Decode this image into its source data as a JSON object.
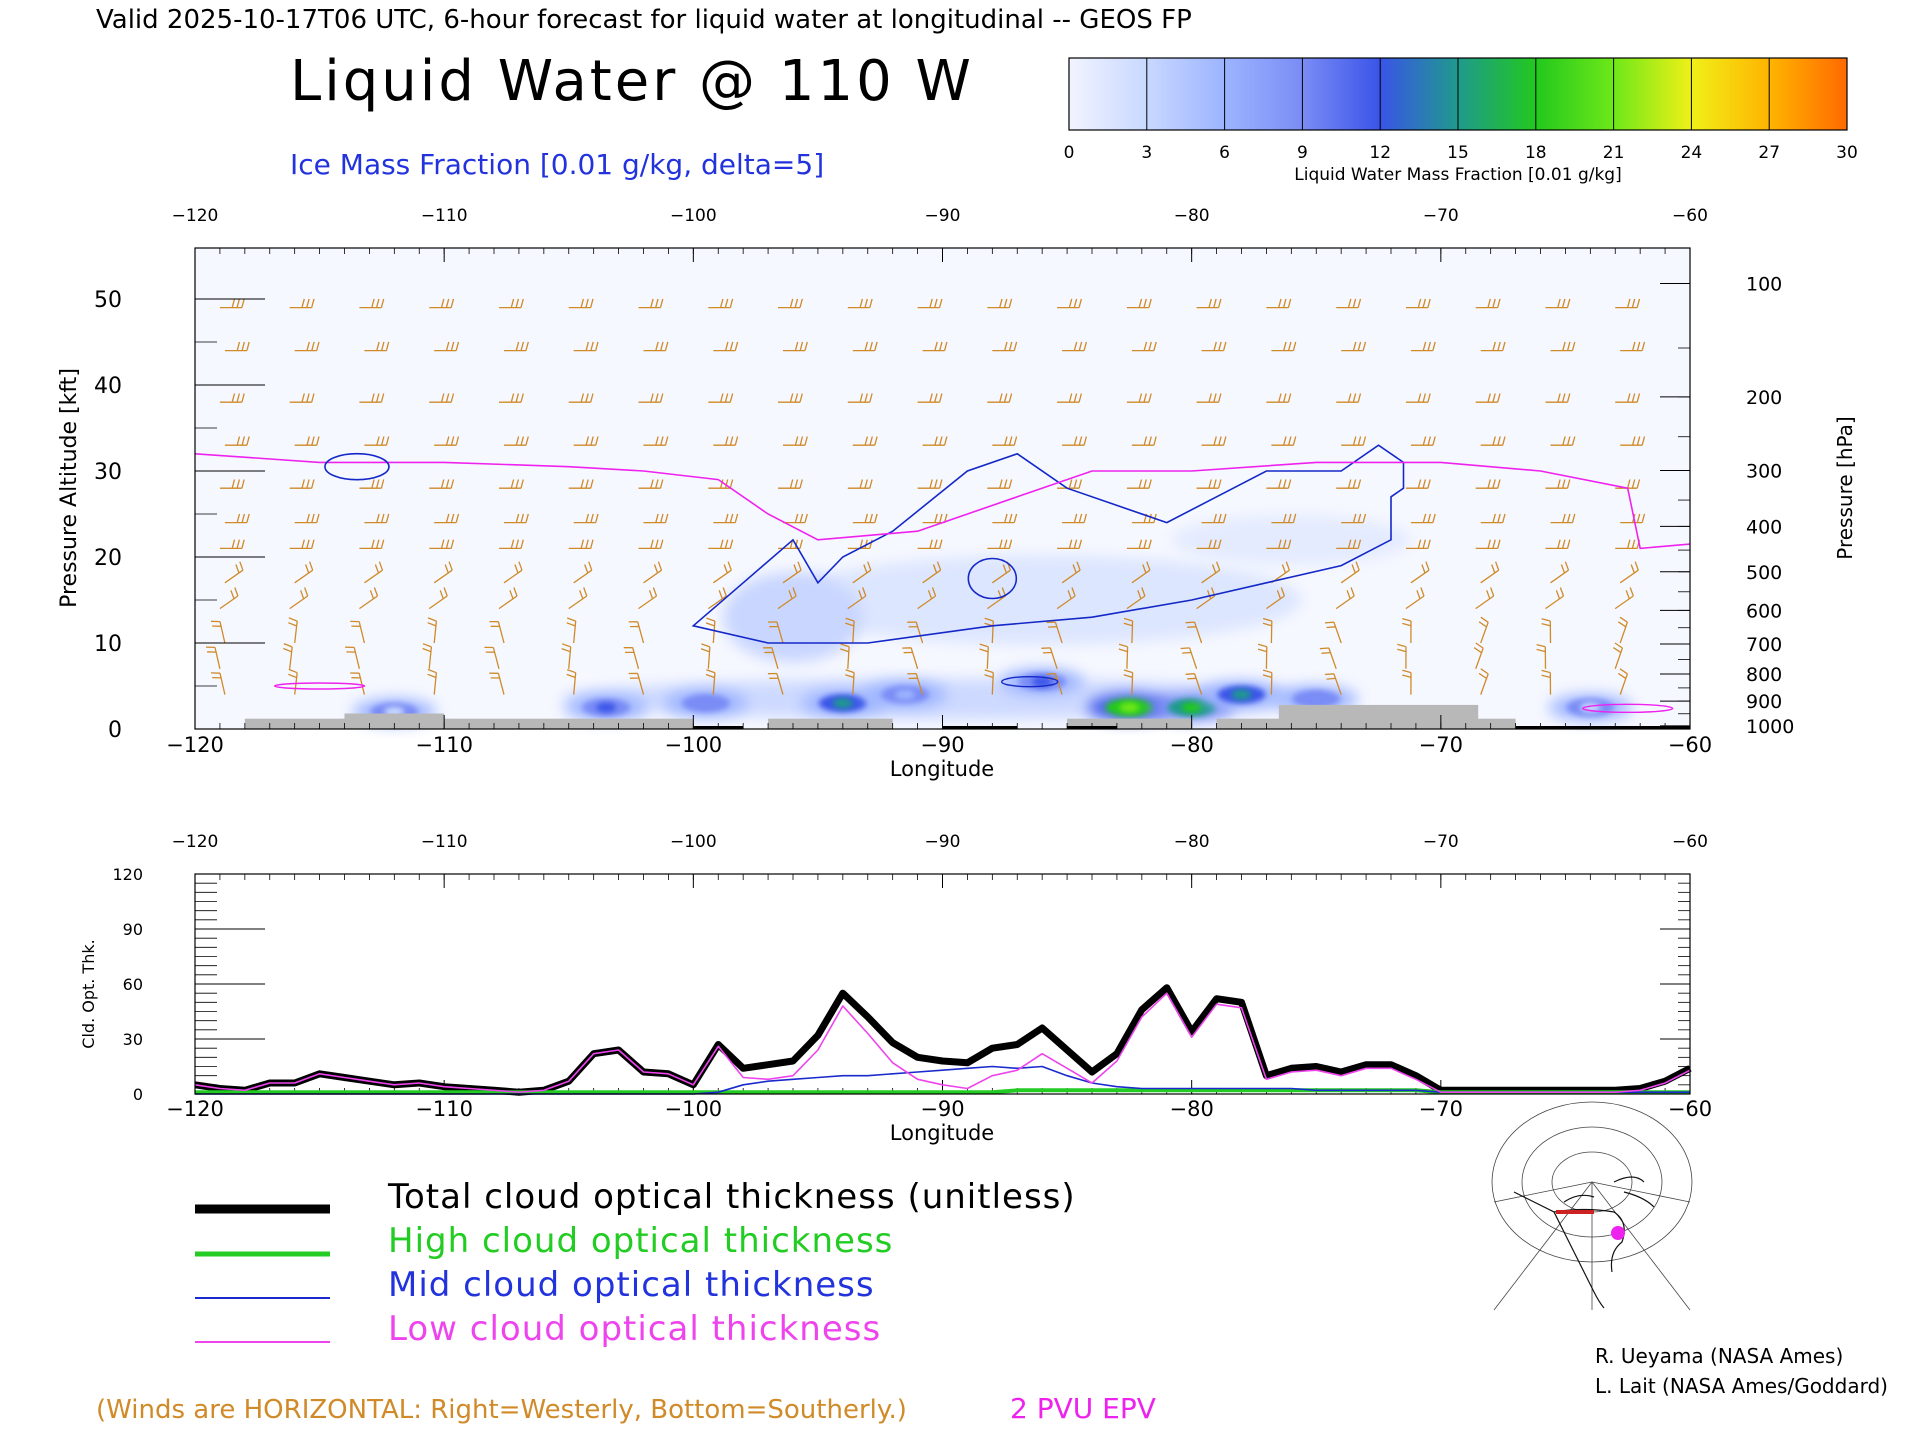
{
  "header": {
    "valid_line": "Valid 2025-10-17T06 UTC, 6-hour forecast for liquid water at longitudinal -- GEOS FP",
    "title": "Liquid Water @ 110 W",
    "subtitle": "Ice Mass Fraction [0.01 g/kg, delta=5]"
  },
  "colorbar": {
    "label": "Liquid Water Mass Fraction [0.01 g/kg]",
    "ticks": [
      "0",
      "3",
      "6",
      "9",
      "12",
      "15",
      "18",
      "21",
      "24",
      "27",
      "30"
    ],
    "colors": [
      "#f2f4ff",
      "#c8d8ff",
      "#9cb4ff",
      "#7a8cf5",
      "#3a54e8",
      "#1f9a8c",
      "#22c81e",
      "#6ee818",
      "#f0f018",
      "#ffb400",
      "#ff6a00"
    ]
  },
  "colors": {
    "ice_contour": "#1428c8",
    "epv_contour": "#ee22ee",
    "wind_barb": "#d08a28",
    "terrain": "#b8b8b8",
    "total_line": "#000000",
    "high_line": "#22cc22",
    "mid_line": "#1a2acc",
    "low_line": "#ee44ee"
  },
  "chart_data": [
    {
      "type": "heatmap",
      "title": "Liquid Water @ 110 W",
      "xlabel": "Longitude",
      "ylabel_left": "Pressure Altitude [kft]",
      "ylabel_right": "Pressure [hPa]",
      "xlim": [
        -120,
        -60
      ],
      "ylim": [
        0,
        55
      ],
      "x_ticks": [
        "-120",
        "-110",
        "-100",
        "-90",
        "-80",
        "-70",
        "-60"
      ],
      "top_x_ticks": [
        "-120",
        "-110",
        "-100",
        "-90",
        "-80",
        "-70",
        "-60"
      ],
      "y_ticks": [
        "0",
        "10",
        "20",
        "30",
        "40",
        "50"
      ],
      "pressure_ticks": [
        "100",
        "200",
        "300",
        "400",
        "500",
        "600",
        "700",
        "800",
        "900",
        "1000"
      ],
      "liquid_water_blobs": [
        {
          "lon": -103.5,
          "alt": 2.5,
          "value": 14
        },
        {
          "lon": -99.5,
          "alt": 3.0,
          "value": 10
        },
        {
          "lon": -94.0,
          "alt": 3.0,
          "value": 17
        },
        {
          "lon": -91.5,
          "alt": 4.0,
          "value": 8
        },
        {
          "lon": -86.0,
          "alt": 5.5,
          "value": 13
        },
        {
          "lon": -82.5,
          "alt": 2.5,
          "value": 22
        },
        {
          "lon": -80.0,
          "alt": 2.5,
          "value": 18
        },
        {
          "lon": -78.0,
          "alt": 4.0,
          "value": 15
        },
        {
          "lon": -75.0,
          "alt": 3.5,
          "value": 9
        },
        {
          "lon": -112.0,
          "alt": 2.0,
          "value": 5
        },
        {
          "lon": -64.0,
          "alt": 2.5,
          "value": 5
        }
      ],
      "ice_contour_5": [
        [
          -100,
          12
        ],
        [
          -97,
          10
        ],
        [
          -93,
          10
        ],
        [
          -88,
          12
        ],
        [
          -84,
          13
        ],
        [
          -80,
          15
        ],
        [
          -77,
          17
        ],
        [
          -74,
          19
        ],
        [
          -72,
          22
        ],
        [
          -72,
          27
        ],
        [
          -71.5,
          28
        ],
        [
          -71.5,
          31
        ],
        [
          -72.5,
          33
        ],
        [
          -74,
          30
        ],
        [
          -77,
          30
        ],
        [
          -79,
          27
        ],
        [
          -81,
          24
        ],
        [
          -83,
          26
        ],
        [
          -85,
          28
        ],
        [
          -87,
          32
        ],
        [
          -89,
          30
        ],
        [
          -92,
          23
        ],
        [
          -94,
          20
        ],
        [
          -95,
          17
        ],
        [
          -96,
          22
        ],
        [
          -98,
          17
        ],
        [
          -100,
          12
        ]
      ],
      "epv_2pvu": [
        [
          -120,
          32
        ],
        [
          -115,
          31
        ],
        [
          -110,
          31
        ],
        [
          -105,
          30.5
        ],
        [
          -102,
          30
        ],
        [
          -99,
          29
        ],
        [
          -97,
          25
        ],
        [
          -95,
          22
        ],
        [
          -91,
          23
        ],
        [
          -87,
          27
        ],
        [
          -84,
          30
        ],
        [
          -80,
          30
        ],
        [
          -75,
          31
        ],
        [
          -70,
          31
        ],
        [
          -66,
          30
        ],
        [
          -62.5,
          28
        ],
        [
          -62,
          21
        ],
        [
          -60,
          21.5
        ]
      ]
    },
    {
      "type": "line",
      "xlabel": "Longitude",
      "ylabel": "Cld. Opt. Thk.",
      "xlim": [
        -120,
        -60
      ],
      "ylim": [
        0,
        120
      ],
      "x_ticks": [
        "-120",
        "-110",
        "-100",
        "-90",
        "-80",
        "-70",
        "-60"
      ],
      "top_x_ticks": [
        "-120",
        "-110",
        "-100",
        "-90",
        "-80",
        "-70",
        "-60"
      ],
      "y_ticks": [
        "0",
        "30",
        "60",
        "90",
        "120"
      ],
      "x": [
        -120,
        -119,
        -118,
        -117,
        -116,
        -115,
        -114,
        -113,
        -112,
        -111,
        -110,
        -109,
        -108,
        -107,
        -106,
        -105,
        -104,
        -103,
        -102,
        -101,
        -100,
        -99,
        -98,
        -97,
        -96,
        -95,
        -94,
        -93,
        -92,
        -91,
        -90,
        -89,
        -88,
        -87,
        -86,
        -85,
        -84,
        -83,
        -82,
        -81,
        -80,
        -79,
        -78,
        -77,
        -76,
        -75,
        -74,
        -73,
        -72,
        -71,
        -70,
        -69,
        -68,
        -67,
        -66,
        -65,
        -64,
        -63,
        -62,
        -61,
        -60
      ],
      "series": [
        {
          "name": "Total cloud optical thickness (unitless)",
          "color": "#000000",
          "values": [
            5,
            3,
            2,
            6,
            6,
            11,
            9,
            7,
            5,
            6,
            4,
            3,
            2,
            1,
            2,
            7,
            22,
            24,
            12,
            11,
            5,
            27,
            14,
            16,
            18,
            32,
            55,
            42,
            28,
            20,
            18,
            17,
            25,
            27,
            36,
            24,
            12,
            22,
            46,
            58,
            34,
            52,
            50,
            10,
            14,
            15,
            12,
            16,
            16,
            10,
            2,
            2,
            2,
            2,
            2,
            2,
            2,
            2,
            3,
            7,
            14
          ]
        },
        {
          "name": "High cloud optical thickness",
          "color": "#22cc22",
          "values": [
            1,
            1,
            1,
            1,
            1,
            1,
            1,
            1,
            1,
            1,
            1,
            1,
            1,
            1,
            1,
            1,
            1,
            1,
            1,
            1,
            1,
            1,
            1,
            1,
            1,
            1,
            1,
            1,
            1,
            1,
            1,
            1,
            1,
            2,
            2,
            2,
            2,
            2,
            2,
            2,
            2,
            2,
            2,
            2,
            2,
            2,
            2,
            2,
            2,
            2,
            1,
            1,
            1,
            1,
            1,
            1,
            1,
            1,
            1,
            1,
            1
          ]
        },
        {
          "name": "Mid cloud optical thickness",
          "color": "#1a2acc",
          "values": [
            0,
            0,
            0,
            0,
            0,
            0,
            0,
            0,
            0,
            0,
            0,
            0,
            0,
            0,
            0,
            0,
            0,
            0,
            0,
            0,
            0,
            1,
            5,
            7,
            8,
            9,
            10,
            10,
            11,
            12,
            13,
            14,
            15,
            14,
            15,
            10,
            6,
            4,
            3,
            3,
            3,
            3,
            3,
            3,
            3,
            2,
            2,
            2,
            2,
            2,
            1,
            1,
            1,
            1,
            1,
            1,
            1,
            1,
            1,
            1,
            1
          ]
        },
        {
          "name": "Low cloud optical thickness",
          "color": "#ee44ee",
          "values": [
            5,
            3,
            2,
            6,
            6,
            11,
            9,
            7,
            5,
            6,
            4,
            3,
            2,
            1,
            2,
            7,
            22,
            24,
            12,
            11,
            5,
            26,
            9,
            8,
            10,
            24,
            48,
            33,
            17,
            8,
            5,
            3,
            10,
            13,
            22,
            14,
            6,
            18,
            42,
            55,
            31,
            49,
            47,
            8,
            12,
            13,
            10,
            14,
            14,
            8,
            1,
            1,
            1,
            1,
            1,
            1,
            1,
            1,
            2,
            6,
            13
          ]
        }
      ]
    }
  ],
  "legend": {
    "total": "Total cloud optical thickness (unitless)",
    "high": "High cloud optical thickness",
    "mid": "Mid cloud optical thickness",
    "low": "Low cloud optical thickness"
  },
  "footer": {
    "winds_note": "(Winds are HORIZONTAL: Right=Westerly, Bottom=Southerly.)",
    "epv_label": "2 PVU EPV",
    "credit1": "R. Ueyama (NASA Ames)",
    "credit2": "L. Lait (NASA Ames/Goddard)"
  }
}
